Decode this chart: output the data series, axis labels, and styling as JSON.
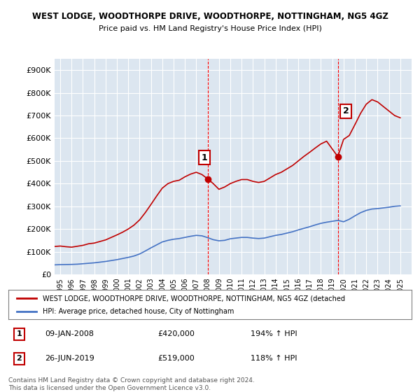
{
  "title": "WEST LODGE, WOODTHORPE DRIVE, WOODTHORPE, NOTTINGHAM, NG5 4GZ",
  "subtitle": "Price paid vs. HM Land Registry's House Price Index (HPI)",
  "ylabel_ticks": [
    "£0",
    "£100K",
    "£200K",
    "£300K",
    "£400K",
    "£500K",
    "£600K",
    "£700K",
    "£800K",
    "£900K"
  ],
  "ytick_values": [
    0,
    100000,
    200000,
    300000,
    400000,
    500000,
    600000,
    700000,
    800000,
    900000
  ],
  "ylim": [
    0,
    950000
  ],
  "background_color": "#ffffff",
  "plot_bg_color": "#dce6f0",
  "grid_color": "#ffffff",
  "red_line_color": "#c00000",
  "blue_line_color": "#4472c4",
  "vline_color": "#ff0000",
  "point1_x": 2008.03,
  "point1_y": 420000,
  "point2_x": 2019.49,
  "point2_y": 519000,
  "legend_label_red": "WEST LODGE, WOODTHORPE DRIVE, WOODTHORPE, NOTTINGHAM, NG5 4GZ (detached",
  "legend_label_blue": "HPI: Average price, detached house, City of Nottingham",
  "annotation1_label": "1",
  "annotation2_label": "2",
  "footer1": "Contains HM Land Registry data © Crown copyright and database right 2024.",
  "footer2": "This data is licensed under the Open Government Licence v3.0.",
  "table_row1": "1    09-JAN-2008    £420,000    194% ↑ HPI",
  "table_row2": "2    26-JUN-2019    £519,000    118% ↑ HPI",
  "xmin": 1994.5,
  "xmax": 2026.0,
  "hpi_data": {
    "years": [
      1994.5,
      1995.0,
      1995.5,
      1996.0,
      1996.5,
      1997.0,
      1997.5,
      1998.0,
      1998.5,
      1999.0,
      1999.5,
      2000.0,
      2000.5,
      2001.0,
      2001.5,
      2002.0,
      2002.5,
      2003.0,
      2003.5,
      2004.0,
      2004.5,
      2005.0,
      2005.5,
      2006.0,
      2006.5,
      2007.0,
      2007.5,
      2008.0,
      2008.5,
      2009.0,
      2009.5,
      2010.0,
      2010.5,
      2011.0,
      2011.5,
      2012.0,
      2012.5,
      2013.0,
      2013.5,
      2014.0,
      2014.5,
      2015.0,
      2015.5,
      2016.0,
      2016.5,
      2017.0,
      2017.5,
      2018.0,
      2018.5,
      2019.0,
      2019.5,
      2020.0,
      2020.5,
      2021.0,
      2021.5,
      2022.0,
      2022.5,
      2023.0,
      2023.5,
      2024.0,
      2024.5,
      2025.0
    ],
    "values": [
      42000,
      43000,
      43500,
      44000,
      45000,
      47000,
      49000,
      51000,
      54000,
      57000,
      61000,
      65000,
      70000,
      75000,
      81000,
      90000,
      103000,
      117000,
      130000,
      143000,
      150000,
      155000,
      158000,
      163000,
      168000,
      172000,
      170000,
      162000,
      153000,
      148000,
      150000,
      157000,
      160000,
      163000,
      163000,
      160000,
      158000,
      160000,
      166000,
      172000,
      176000,
      182000,
      188000,
      196000,
      203000,
      210000,
      218000,
      225000,
      230000,
      234000,
      238000,
      232000,
      243000,
      258000,
      272000,
      282000,
      288000,
      290000,
      293000,
      296000,
      300000,
      302000
    ]
  },
  "red_data": {
    "years": [
      1994.5,
      1995.0,
      1995.5,
      1996.0,
      1996.5,
      1997.0,
      1997.5,
      1998.0,
      1998.5,
      1999.0,
      1999.5,
      2000.0,
      2000.5,
      2001.0,
      2001.5,
      2002.0,
      2002.5,
      2003.0,
      2003.5,
      2004.0,
      2004.5,
      2005.0,
      2005.5,
      2006.0,
      2006.5,
      2007.0,
      2007.5,
      2008.03,
      2008.5,
      2009.0,
      2009.5,
      2010.0,
      2010.5,
      2011.0,
      2011.5,
      2012.0,
      2012.5,
      2013.0,
      2013.5,
      2014.0,
      2014.5,
      2015.0,
      2015.5,
      2016.0,
      2016.5,
      2017.0,
      2017.5,
      2018.0,
      2018.5,
      2019.49,
      2020.0,
      2020.5,
      2021.0,
      2021.5,
      2022.0,
      2022.5,
      2023.0,
      2023.5,
      2024.0,
      2024.5,
      2025.0
    ],
    "values": [
      123000,
      125000,
      122000,
      120000,
      124000,
      128000,
      135000,
      138000,
      145000,
      152000,
      163000,
      174000,
      186000,
      200000,
      217000,
      240000,
      272000,
      308000,
      345000,
      380000,
      400000,
      410000,
      415000,
      430000,
      442000,
      450000,
      440000,
      420000,
      400000,
      375000,
      385000,
      400000,
      410000,
      418000,
      418000,
      410000,
      405000,
      410000,
      425000,
      440000,
      450000,
      465000,
      480000,
      500000,
      520000,
      538000,
      557000,
      575000,
      587000,
      519000,
      595000,
      612000,
      660000,
      710000,
      750000,
      770000,
      760000,
      740000,
      720000,
      700000,
      690000
    ]
  }
}
